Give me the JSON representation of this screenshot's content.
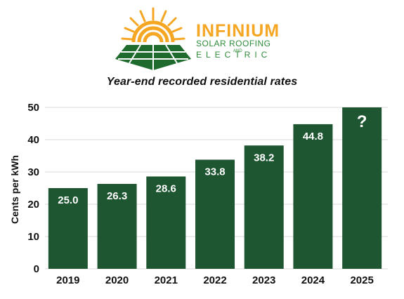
{
  "brand": {
    "name": "INFINIUM",
    "tagline": "SOLAR ROOFING",
    "connector": "AND",
    "subline": "ELECTRIC",
    "colors": {
      "sun": "#F5A623",
      "panel": "#1F6B2E",
      "text_orange": "#F5A623",
      "text_green": "#2E8B3A"
    }
  },
  "chart_data": {
    "type": "bar",
    "title": "Year-end recorded residential rates",
    "xlabel": "",
    "ylabel": "Cents per kWh",
    "categories": [
      "2019",
      "2020",
      "2021",
      "2022",
      "2023",
      "2024",
      "2025"
    ],
    "values": [
      25.0,
      26.3,
      28.6,
      33.8,
      38.2,
      44.8,
      50
    ],
    "data_labels": [
      "25.0",
      "26.3",
      "28.6",
      "33.8",
      "38.2",
      "44.8",
      "?"
    ],
    "yticks": [
      "0",
      "10",
      "20",
      "30",
      "40",
      "50"
    ],
    "ylim": [
      0,
      50
    ],
    "grid": true,
    "legend": "none",
    "bar_color": "#1E5631"
  }
}
